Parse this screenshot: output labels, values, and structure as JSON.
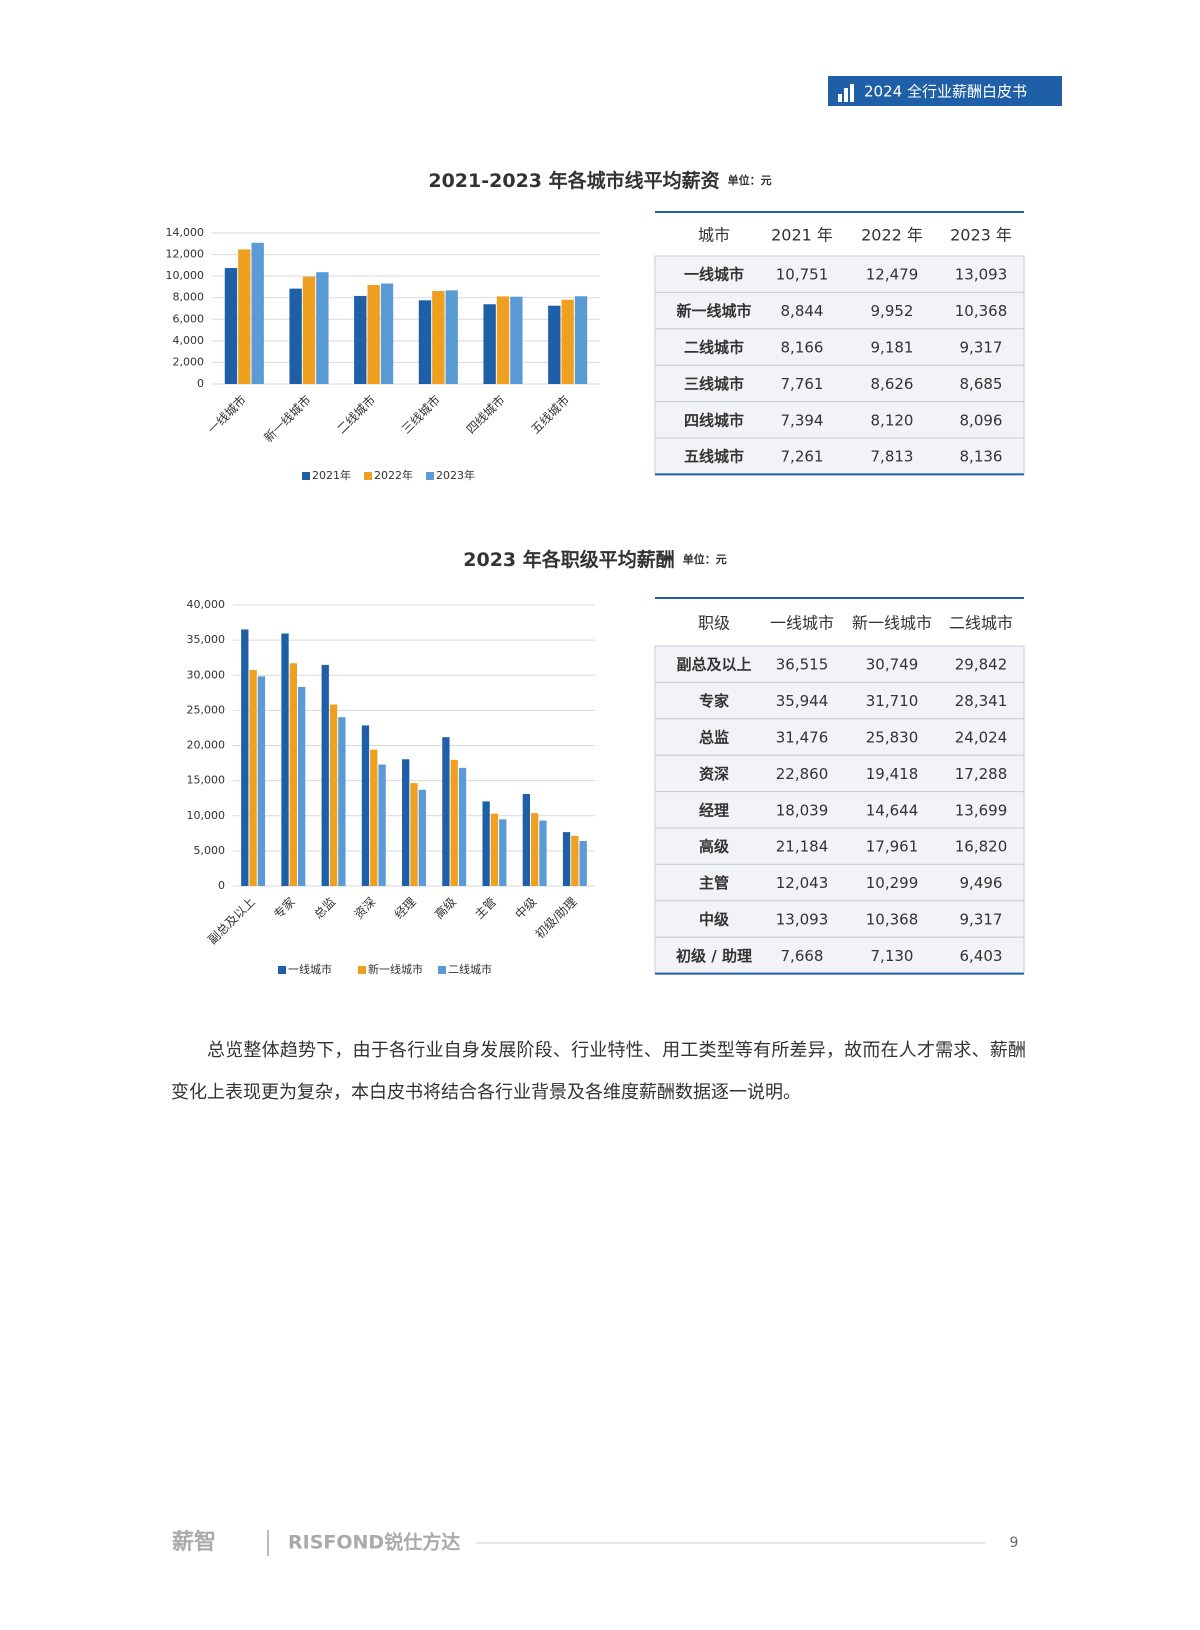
{
  "header": {
    "badge": "2024 全行业薪酬白皮书"
  },
  "chart_data": [
    {
      "type": "bar",
      "title": "2021-2023 年各城市线平均薪资",
      "unit": "单位：元",
      "categories": [
        "一线城市",
        "新一线城市",
        "二线城市",
        "三线城市",
        "四线城市",
        "五线城市"
      ],
      "series": [
        {
          "name": "2021年",
          "color": "#1f5fa8",
          "values": [
            10751,
            8844,
            8166,
            7761,
            7394,
            7261
          ]
        },
        {
          "name": "2022年",
          "color": "#f0a020",
          "values": [
            12479,
            9952,
            9181,
            8626,
            8120,
            7813
          ]
        },
        {
          "name": "2023年",
          "color": "#5b9bd5",
          "values": [
            13093,
            10368,
            9317,
            8685,
            8096,
            8136
          ]
        }
      ],
      "ylim": [
        0,
        14000
      ],
      "yticks": [
        0,
        {
          "value": 2000,
          "label": "2,000"
        },
        {
          "value": 4000,
          "label": "4,000"
        },
        {
          "value": 6000,
          "label": "6,000"
        },
        {
          "value": 8000,
          "label": "8,000"
        },
        {
          "value": 10000,
          "label": "10,000"
        },
        {
          "value": 12000,
          "label": "12,000"
        },
        {
          "value": 14000,
          "label": "14,000"
        }
      ],
      "grid": true,
      "legend": "bottom"
    },
    {
      "type": "bar",
      "title": "2023 年各职级平均薪酬",
      "unit": "单位：元",
      "categories": [
        "副总及以上",
        "专家",
        "总监",
        "资深",
        "经理",
        "高级",
        "主管",
        "中级",
        "初级/助理"
      ],
      "series": [
        {
          "name": "一线城市",
          "color": "#1f5fa8",
          "values": [
            36515,
            35944,
            31476,
            22860,
            18039,
            21184,
            12043,
            13093,
            7668
          ]
        },
        {
          "name": "新一线城市",
          "color": "#f0a020",
          "values": [
            30749,
            31710,
            25830,
            19418,
            14644,
            17961,
            10299,
            10368,
            7130
          ]
        },
        {
          "name": "二线城市",
          "color": "#5b9bd5",
          "values": [
            29842,
            28341,
            24024,
            17288,
            13699,
            16820,
            9496,
            9317,
            6403
          ]
        }
      ],
      "ylim": [
        0,
        40000
      ],
      "yticks": [
        0,
        {
          "value": 5000,
          "label": "5,000"
        },
        {
          "value": 10000,
          "label": "10,000"
        },
        {
          "value": 15000,
          "label": "15,000"
        },
        {
          "value": 20000,
          "label": "20,000"
        },
        {
          "value": 25000,
          "label": "25,000"
        },
        {
          "value": 30000,
          "label": "30,000"
        },
        {
          "value": 35000,
          "label": "35,000"
        },
        {
          "value": 40000,
          "label": "40,000"
        }
      ],
      "grid": true,
      "legend": "bottom"
    }
  ],
  "tables": [
    {
      "header": [
        "城市",
        "2021 年",
        "2022 年",
        "2023 年"
      ],
      "rows": [
        [
          "一线城市",
          "10,751",
          "12,479",
          "13,093"
        ],
        [
          "新一线城市",
          "8,844",
          "9,952",
          "10,368"
        ],
        [
          "二线城市",
          "8,166",
          "9,181",
          "9,317"
        ],
        [
          "三线城市",
          "7,761",
          "8,626",
          "8,685"
        ],
        [
          "四线城市",
          "7,394",
          "8,120",
          "8,096"
        ],
        [
          "五线城市",
          "7,261",
          "7,813",
          "8,136"
        ]
      ]
    },
    {
      "header": [
        "职级",
        "一线城市",
        "新一线城市",
        "二线城市"
      ],
      "rows": [
        [
          "副总及以上",
          "36,515",
          "30,749",
          "29,842"
        ],
        [
          "专家",
          "35,944",
          "31,710",
          "28,341"
        ],
        [
          "总监",
          "31,476",
          "25,830",
          "24,024"
        ],
        [
          "资深",
          "22,860",
          "19,418",
          "17,288"
        ],
        [
          "经理",
          "18,039",
          "14,644",
          "13,699"
        ],
        [
          "高级",
          "21,184",
          "17,961",
          "16,820"
        ],
        [
          "主管",
          "12,043",
          "10,299",
          "9,496"
        ],
        [
          "中级",
          "13,093",
          "10,368",
          "9,317"
        ],
        [
          "初级 / 助理",
          "7,668",
          "7,130",
          "6,403"
        ]
      ]
    }
  ],
  "body": {
    "paragraph": "总览整体趋势下，由于各行业自身发展阶段、行业特性、用工类型等有所差异，故而在人才需求、薪酬变化上表现更为复杂，本白皮书将结合各行业背景及各维度薪酬数据逐一说明。"
  },
  "footer": {
    "brand": "薪智",
    "partner": "RISFOND锐仕方达",
    "page": "9"
  }
}
